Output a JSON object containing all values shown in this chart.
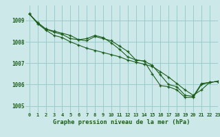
{
  "title": "",
  "xlabel": "Graphe pression niveau de la mer (hPa)",
  "xlim": [
    -0.5,
    23
  ],
  "ylim": [
    1004.7,
    1009.7
  ],
  "yticks": [
    1005,
    1006,
    1007,
    1008,
    1009
  ],
  "xticks": [
    0,
    1,
    2,
    3,
    4,
    5,
    6,
    7,
    8,
    9,
    10,
    11,
    12,
    13,
    14,
    15,
    16,
    17,
    18,
    19,
    20,
    21,
    22,
    23
  ],
  "background_color": "#cce8e8",
  "grid_color": "#99cccc",
  "line_color": "#1a5c1a",
  "line1": [
    1009.3,
    1008.9,
    1008.6,
    1008.5,
    1008.4,
    1008.3,
    1008.1,
    1008.05,
    1008.25,
    1008.15,
    1008.05,
    1007.8,
    1007.55,
    1007.15,
    1007.1,
    1006.5,
    1005.95,
    1005.9,
    1005.75,
    1005.4,
    1005.4,
    1006.0,
    1006.1,
    1006.15
  ],
  "line2": [
    1009.3,
    1008.9,
    1008.6,
    1008.45,
    1008.35,
    1008.15,
    1008.1,
    1008.15,
    1008.3,
    1008.2,
    1007.95,
    1007.65,
    1007.3,
    1007.15,
    1007.1,
    1006.9,
    1006.45,
    1006.0,
    1005.9,
    1005.5,
    1005.45,
    1006.05,
    1006.1,
    1006.15
  ],
  "line3": [
    1009.3,
    1008.85,
    1008.55,
    1008.3,
    1008.2,
    1008.0,
    1007.85,
    1007.7,
    1007.6,
    1007.5,
    1007.4,
    1007.3,
    1007.15,
    1007.05,
    1006.95,
    1006.85,
    1006.6,
    1006.35,
    1006.05,
    1005.75,
    1005.5,
    1005.75,
    1006.1,
    1006.15
  ]
}
